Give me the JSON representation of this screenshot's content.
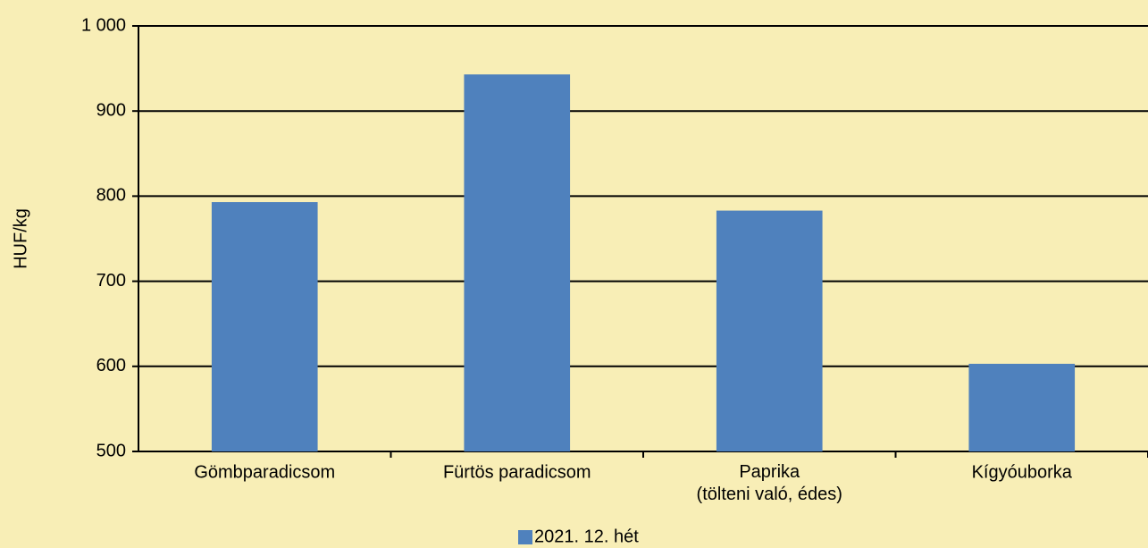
{
  "chart_data": {
    "type": "bar",
    "y_label": "HUF/kg",
    "categories": [
      "Gömbparadicsom",
      "Fürtös paradicsom",
      "Paprika\n(tölteni való, édes)",
      "Kígyóuborka"
    ],
    "series": [
      {
        "name": "2021. 12. hét",
        "color": "#4f81bd",
        "values": [
          793,
          943,
          783,
          603
        ]
      }
    ],
    "ylim": [
      500,
      1000
    ],
    "yticks": [
      500,
      600,
      700,
      800,
      900,
      {
        "value": 1000,
        "label": "1 000"
      }
    ],
    "grid": true,
    "legend": "bottom"
  }
}
